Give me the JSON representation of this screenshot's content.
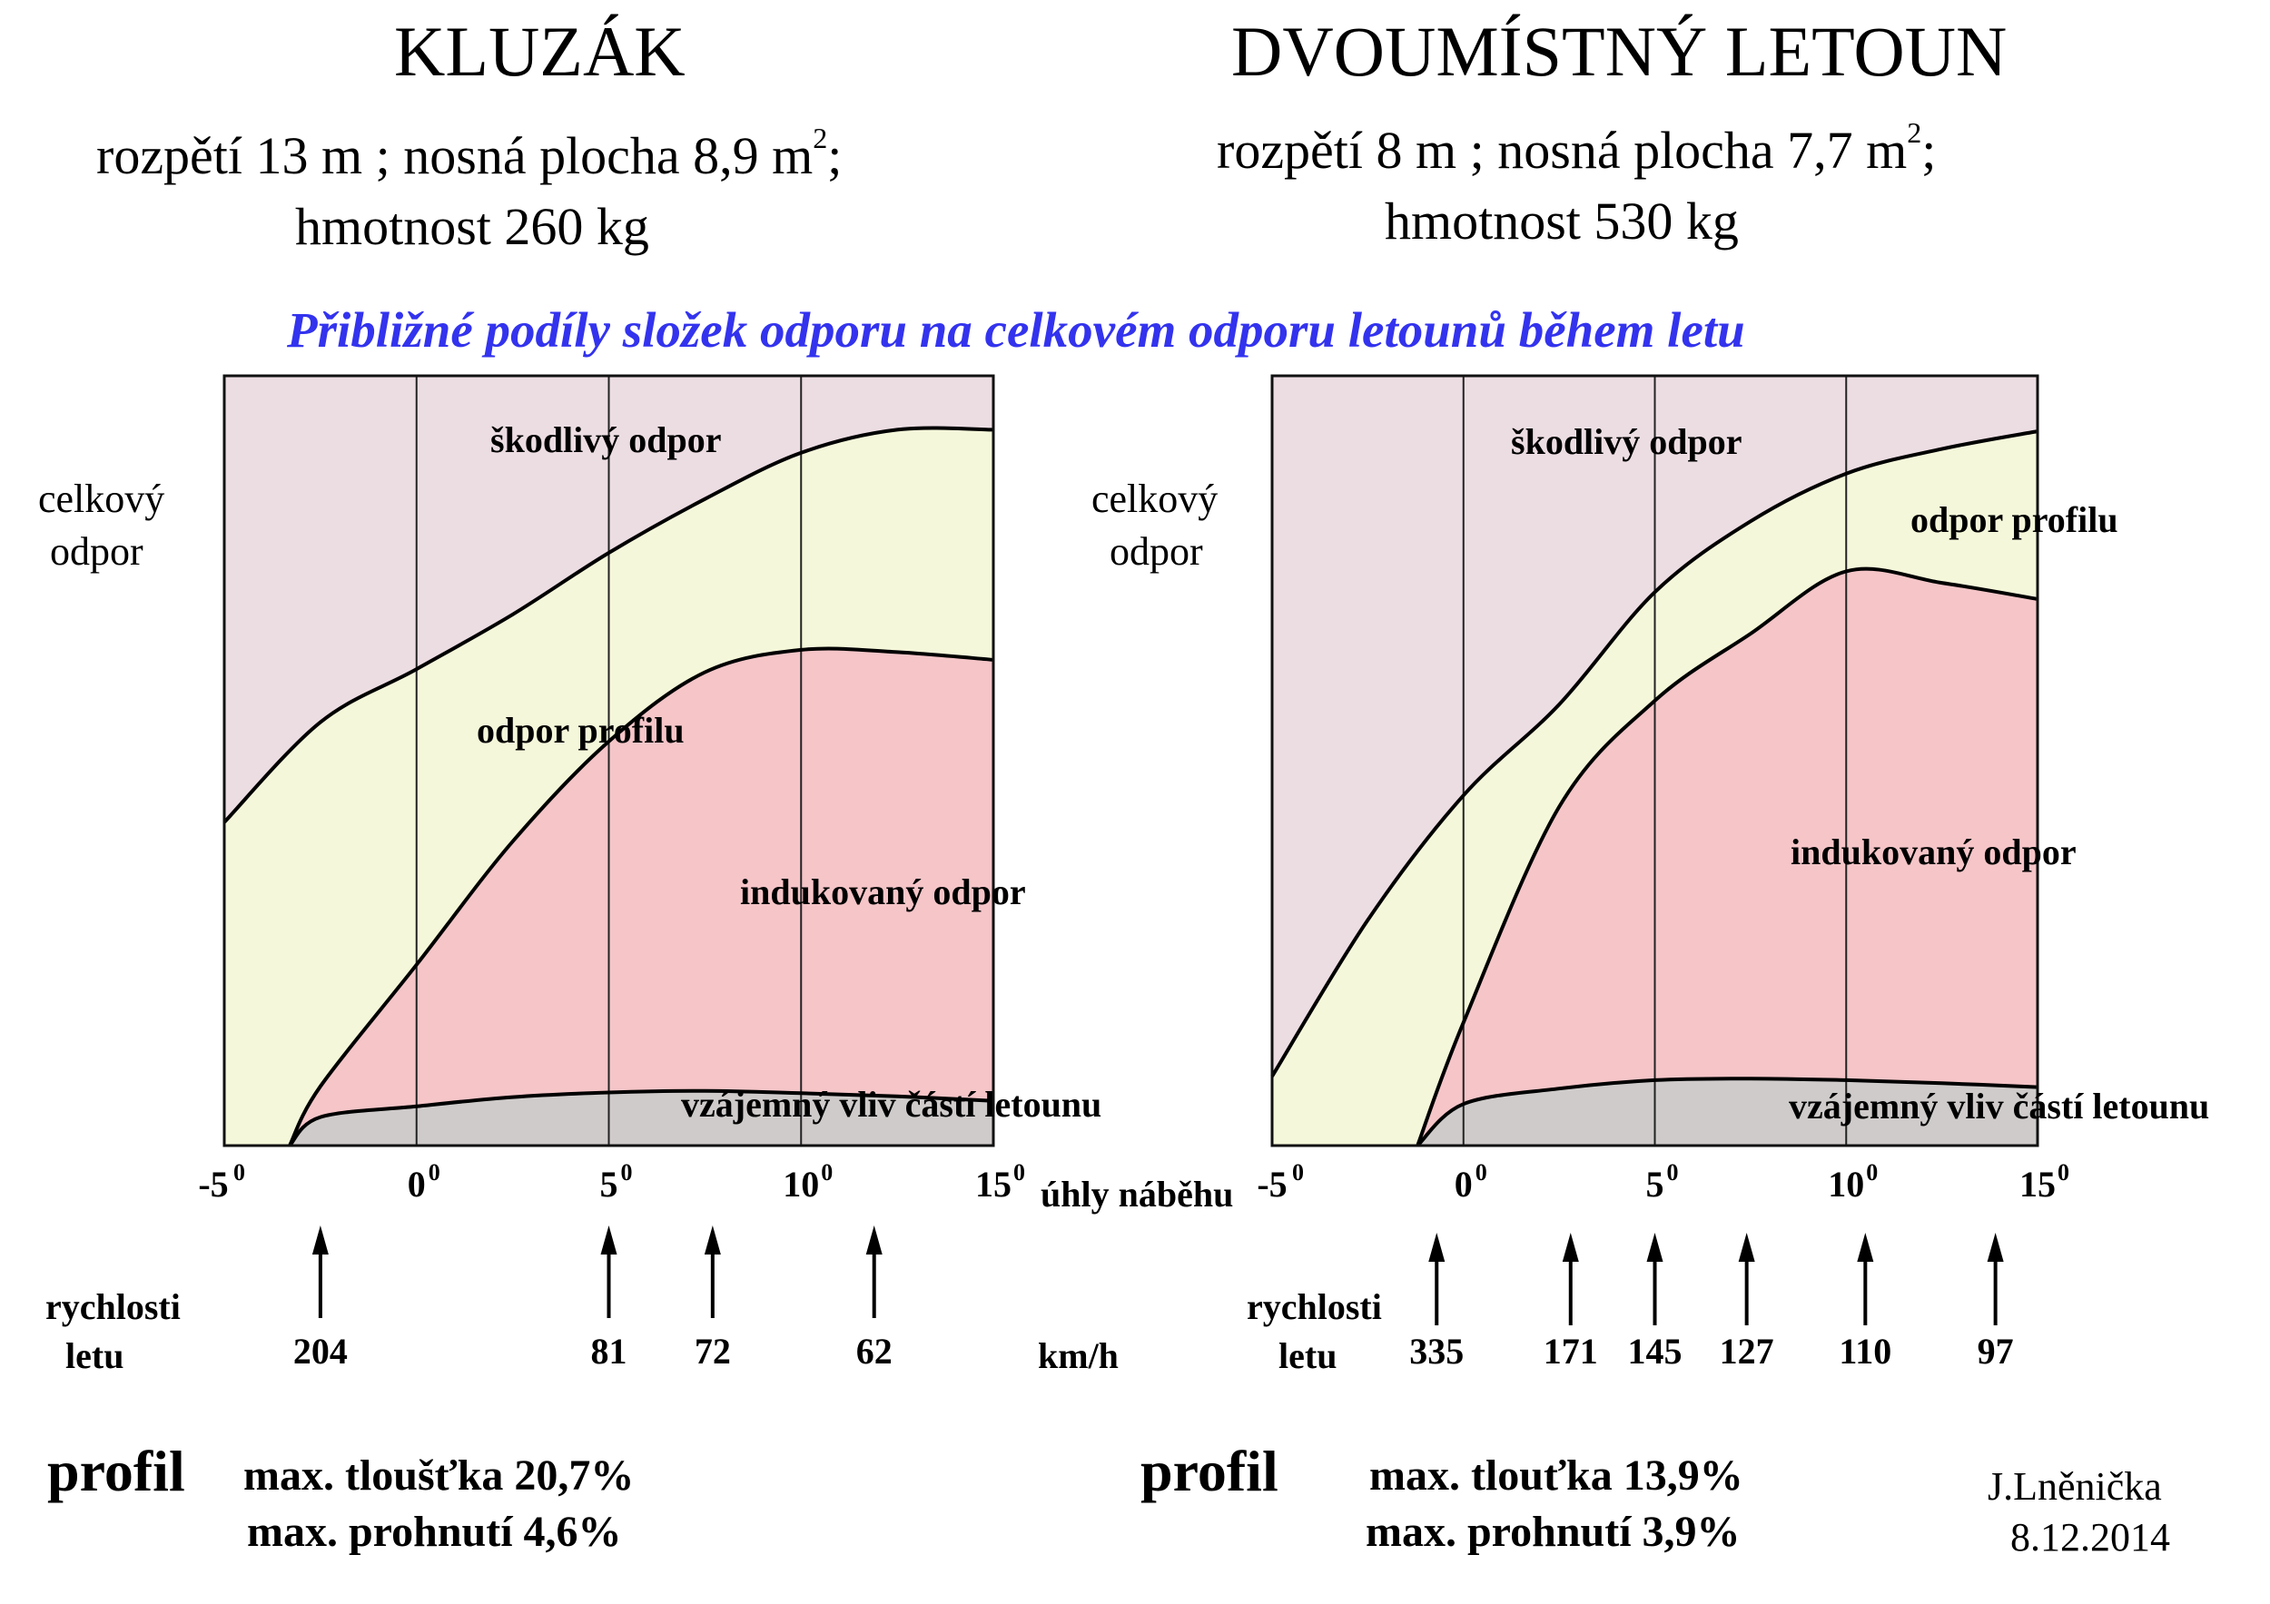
{
  "left": {
    "title": "KLUZÁK",
    "spec_line1_a": "rozpětí  13 m ; nosná plocha  8,9 m",
    "spec_line1_sup": "2",
    "spec_line1_b": ";",
    "spec_line2": "hmotnost    260 kg",
    "profile_label": "profil",
    "thickness": "max. tloušťka  20,7%",
    "camber": "max. prohnutí   4,6%"
  },
  "right": {
    "title": "DVOUMÍSTNÝ LETOUN",
    "spec_line1_a": "rozpětí   8 m ; nosná plocha   7,7 m",
    "spec_line1_sup": "2",
    "spec_line1_b": ";",
    "spec_line2": "hmotnost   530 kg",
    "profile_label": "profil",
    "thickness": "max. tlouťka   13,9%",
    "camber": "max. prohnutí   3,9%"
  },
  "subtitle": "Přibližné podíly složek odporu na celkovém odporu letounů během letu",
  "axis": {
    "y_label_1": "celkový",
    "y_label_2": "odpor",
    "x_label": "úhly náběhu",
    "speed_label_1": "rychlosti",
    "speed_label_2": "letu",
    "speed_unit": "km/h"
  },
  "author": "J.Lněnička",
  "date": "8.12.2014",
  "chart_data": [
    {
      "type": "area",
      "title": "KLUZÁK",
      "x_label": "úhly náběhu",
      "xlim": [
        -5,
        15
      ],
      "x_ticks": [
        -5,
        0,
        5,
        10,
        15
      ],
      "x_tick_labels": [
        "-5",
        "0",
        "5",
        "10",
        "15"
      ],
      "x_tick_unit": "0",
      "ylabel": "celkový odpor",
      "series": [
        {
          "name": "vzájemný vliv částí letounu",
          "color": "#cfcbcb",
          "x": [
            -3.3,
            -2.5,
            0,
            2.5,
            5,
            7.5,
            10,
            12.5,
            15
          ],
          "y": [
            0,
            0.037,
            0.051,
            0.063,
            0.069,
            0.071,
            0.068,
            0.064,
            0.058
          ]
        },
        {
          "name": "indukovaný odpor",
          "color": "#f5c5c8",
          "x": [
            -3.3,
            -2.5,
            0,
            2.5,
            5,
            7.5,
            10,
            12.5,
            15
          ],
          "y": [
            0,
            0.077,
            0.235,
            0.395,
            0.525,
            0.615,
            0.644,
            0.641,
            0.631
          ]
        },
        {
          "name": "odpor profilu",
          "color": "#f5f7da",
          "x": [
            -5,
            -2.5,
            0,
            2.5,
            5,
            7.5,
            10,
            12.5,
            15
          ],
          "y": [
            0.42,
            0.55,
            0.619,
            0.69,
            0.77,
            0.84,
            0.9,
            0.93,
            0.93
          ]
        },
        {
          "name": "škodlivý odpor",
          "color": "#ecdde3",
          "x": [
            -5,
            15
          ],
          "y": [
            1.0,
            1.0
          ]
        }
      ],
      "speed_markers": [
        {
          "angle": -2.5,
          "speed": "204"
        },
        {
          "angle": 5,
          "speed": "81"
        },
        {
          "angle": 7.7,
          "speed": "72"
        },
        {
          "angle": 11.9,
          "speed": "62"
        }
      ],
      "speed_unit": "km/h"
    },
    {
      "type": "area",
      "title": "DVOUMÍSTNÝ LETOUN",
      "x_label": "úhly náběhu",
      "xlim": [
        -5,
        15
      ],
      "x_ticks": [
        -5,
        0,
        5,
        10,
        15
      ],
      "x_tick_labels": [
        "-5",
        "0",
        "5",
        "10",
        "15"
      ],
      "x_tick_unit": "0",
      "ylabel": "celkový odpor",
      "series": [
        {
          "name": "vzájemný vliv částí letounu",
          "color": "#cfcbcb",
          "x": [
            -1.2,
            0,
            2.5,
            5,
            7.5,
            10,
            12.5,
            15
          ],
          "y": [
            0,
            0.054,
            0.074,
            0.085,
            0.087,
            0.085,
            0.081,
            0.076
          ]
        },
        {
          "name": "indukovaný odpor",
          "color": "#f5c5c8",
          "x": [
            -1.2,
            0,
            2.5,
            5,
            7.5,
            10,
            12.5,
            15
          ],
          "y": [
            0,
            0.16,
            0.44,
            0.578,
            0.665,
            0.746,
            0.731,
            0.71
          ]
        },
        {
          "name": "odpor profilu",
          "color": "#f5f7da",
          "x": [
            -5,
            -2.5,
            0,
            2.5,
            5,
            7.5,
            10,
            12.5,
            15
          ],
          "y": [
            0.09,
            0.293,
            0.455,
            0.573,
            0.719,
            0.811,
            0.873,
            0.905,
            0.928
          ]
        },
        {
          "name": "škodlivý odpor",
          "color": "#ecdde3",
          "x": [
            -5,
            15
          ],
          "y": [
            1.0,
            1.0
          ]
        }
      ],
      "speed_markers": [
        {
          "angle": -0.7,
          "speed": "335"
        },
        {
          "angle": 2.8,
          "speed": "171"
        },
        {
          "angle": 5.0,
          "speed": "145"
        },
        {
          "angle": 7.4,
          "speed": "127"
        },
        {
          "angle": 10.5,
          "speed": "110"
        },
        {
          "angle": 13.9,
          "speed": "97"
        }
      ],
      "speed_unit": "km/h"
    }
  ]
}
